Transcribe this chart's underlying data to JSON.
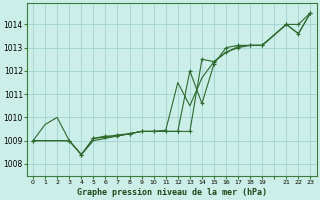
{
  "title": "Graphe pression niveau de la mer (hPa)",
  "bg_color": "#cceee8",
  "grid_color": "#99cccc",
  "line_color": "#2d6a2d",
  "ylim": [
    1007.5,
    1014.9
  ],
  "xlim": [
    -0.5,
    23.5
  ],
  "y_ticks": [
    1008,
    1009,
    1010,
    1011,
    1012,
    1013,
    1014
  ],
  "x_tick_labels": [
    "0",
    "1",
    "2",
    "3",
    "4",
    "5",
    "6",
    "7",
    "8",
    "9",
    "10",
    "11",
    "12",
    "13",
    "14",
    "15",
    "16",
    "17",
    "18",
    "19",
    "",
    "21",
    "22",
    "23"
  ],
  "series1_x": [
    0,
    1,
    2,
    3,
    4,
    5,
    6,
    7,
    8,
    9,
    10,
    11,
    12,
    13,
    14,
    15,
    16,
    17,
    18,
    19,
    21,
    22,
    23
  ],
  "series1_y": [
    1009.0,
    1009.7,
    1010.0,
    1009.0,
    1008.4,
    1009.0,
    1009.1,
    1009.2,
    1009.3,
    1009.4,
    1009.4,
    1009.45,
    1011.5,
    1010.5,
    1011.7,
    1012.4,
    1012.8,
    1013.05,
    1013.1,
    1013.1,
    1014.0,
    1013.6,
    1014.5
  ],
  "series2_x": [
    0,
    3,
    4,
    5,
    6,
    7,
    8,
    9,
    10,
    11,
    12,
    13,
    14,
    15,
    16,
    17,
    18,
    19,
    21,
    22,
    23
  ],
  "series2_y": [
    1009.0,
    1009.0,
    1008.4,
    1009.1,
    1009.2,
    1009.2,
    1009.3,
    1009.4,
    1009.4,
    1009.4,
    1009.4,
    1009.4,
    1012.5,
    1012.4,
    1012.8,
    1013.0,
    1013.1,
    1013.1,
    1014.0,
    1013.6,
    1014.5
  ],
  "series3_x": [
    0,
    3,
    4,
    5,
    6,
    7,
    8,
    9,
    10,
    11,
    12,
    13,
    14,
    15,
    16,
    17,
    18,
    19,
    21,
    22,
    23
  ],
  "series3_y": [
    1009.0,
    1009.0,
    1008.4,
    1009.1,
    1009.15,
    1009.25,
    1009.3,
    1009.4,
    1009.4,
    1009.4,
    1009.4,
    1012.0,
    1010.6,
    1012.3,
    1013.0,
    1013.1,
    1013.1,
    1013.1,
    1014.0,
    1014.0,
    1014.5
  ]
}
